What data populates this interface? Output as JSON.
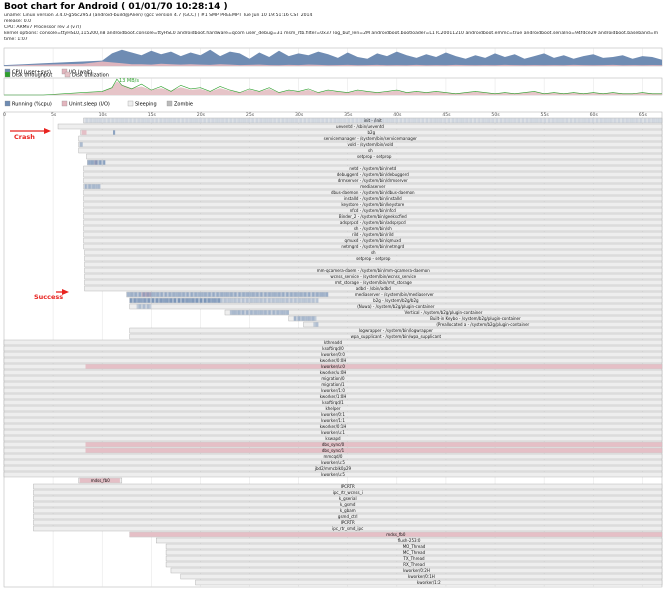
{
  "header": {
    "title": "Boot chart for Android ( 01/01/70 10:28:14 )",
    "lines": [
      "uname: Linux version 3.4.0-g56c2953 (android-build@Alien) (gcc version 4.7 (GCC) ) #1 SMP PREEMPT Tue Jun 10 19:51:16 CST 2014",
      "release: 0.0",
      "CPU: ARMv7 Processor rev 3 (v7l)",
      "kernel options: console=ttyHSL0,115200,n8 androidboot.console=ttyHSL0 androidboot.hardware=qcom user_debug=31 msm_rtb.filter=0x37 log_buf_len=2M androidboot.bootloader=L1TC20011210 androidboot.emmc=true androidboot.serialno=94fdce29 androidboot.baseband=m",
      "time: 1:07"
    ]
  },
  "legend_cpu": [
    {
      "label": "CPU (user+sys)",
      "color": "#6f8cb3"
    },
    {
      "label": "I/O (wait)",
      "color": "#e3b6be"
    }
  ],
  "legend_disk": [
    {
      "label": "Disk throughput",
      "color": "#2ca02c"
    },
    {
      "label": "Disk utilization",
      "color": "#e6c4c8"
    }
  ],
  "legend_proc": [
    {
      "label": "Running (%cpu)",
      "color": "#6f8cb3"
    },
    {
      "label": "Unint.sleep (I/O)",
      "color": "#e3b6be"
    },
    {
      "label": "Sleeping",
      "color": "#eeeeee"
    },
    {
      "label": "Zombie",
      "color": "#bbbbbb"
    }
  ],
  "annotations": {
    "disk_peak": "13 MB/s",
    "crash": "Crash",
    "success": "Success"
  },
  "colors": {
    "cpu": "#6f8cb3",
    "io": "#e3b6be",
    "disk": "#2ca02c",
    "sleeping": "#eeeeee",
    "border": "#aaaaaa",
    "annotation": "#e8231f"
  },
  "chart_data": {
    "type": "gantt",
    "time_axis": {
      "unit": "s",
      "min": 0,
      "max": 67,
      "tick_labels": [
        "0",
        "5s",
        "10s",
        "15s",
        "20s",
        "25s",
        "30s",
        "35s",
        "40s",
        "45s",
        "50s",
        "55s",
        "60s",
        "65s"
      ],
      "tick_values": [
        0,
        5,
        10,
        15,
        20,
        25,
        30,
        35,
        40,
        45,
        50,
        55,
        60,
        65
      ]
    },
    "cpu_series": {
      "x": [
        0,
        2,
        4,
        6,
        8,
        10,
        11,
        12,
        13,
        14,
        15,
        16,
        17,
        18,
        19,
        20,
        21,
        22,
        23,
        24,
        25,
        26,
        27,
        28,
        29,
        30,
        31,
        32,
        33,
        34,
        35,
        36,
        37,
        38,
        39,
        40,
        41,
        42,
        43,
        44,
        45,
        46,
        47,
        48,
        49,
        50,
        51,
        52,
        53,
        54,
        55,
        56,
        57,
        58,
        59,
        60,
        61,
        62,
        63,
        64,
        65,
        66,
        67
      ],
      "cpu": [
        5,
        10,
        15,
        20,
        25,
        30,
        70,
        90,
        75,
        60,
        85,
        65,
        80,
        55,
        75,
        60,
        90,
        55,
        80,
        70,
        40,
        75,
        50,
        85,
        55,
        70,
        60,
        80,
        65,
        45,
        75,
        50,
        40,
        70,
        55,
        80,
        60,
        45,
        65,
        50,
        75,
        55,
        40,
        60,
        45,
        70,
        50,
        65,
        40,
        55,
        70,
        45,
        60,
        40,
        55,
        65,
        45,
        50,
        60,
        40,
        55,
        50,
        35
      ],
      "io": [
        0,
        5,
        8,
        10,
        12,
        25,
        20,
        15,
        10,
        10,
        8,
        12,
        10,
        8,
        10,
        8,
        6,
        10,
        8,
        5,
        6,
        8,
        5,
        4,
        6,
        5,
        8,
        6,
        4,
        5,
        6,
        4,
        5,
        6,
        4,
        5,
        4,
        6,
        4,
        5,
        4,
        6,
        5,
        4,
        5,
        4,
        6,
        5,
        4,
        5,
        4,
        5,
        4,
        6,
        5,
        4,
        5,
        6,
        4,
        5,
        4,
        5,
        4
      ]
    },
    "disk_series": {
      "x": [
        0,
        4,
        6,
        8,
        10,
        11,
        11.5,
        12,
        13,
        14,
        15,
        16,
        17,
        18,
        19,
        20,
        21,
        22,
        23,
        24,
        25,
        26,
        27,
        28,
        29,
        30,
        31,
        32,
        33,
        34,
        35,
        36,
        37,
        38,
        39,
        40,
        41,
        42,
        43,
        44,
        45,
        46,
        47,
        48,
        49,
        50,
        51,
        52,
        53,
        54,
        55,
        56,
        57,
        58,
        59,
        60,
        61,
        62,
        63,
        64,
        65,
        66,
        67
      ],
      "throughput": [
        0,
        0,
        1,
        2,
        3,
        6,
        13,
        8,
        5,
        9,
        4,
        7,
        3,
        8,
        5,
        6,
        3,
        7,
        4,
        2,
        5,
        3,
        6,
        2,
        4,
        3,
        5,
        2,
        4,
        3,
        2,
        4,
        3,
        2,
        3,
        4,
        2,
        3,
        2,
        3,
        2,
        1,
        2,
        3,
        2,
        1,
        2,
        1,
        2,
        3,
        1,
        2,
        1,
        2,
        1,
        2,
        1,
        2,
        1,
        1,
        2,
        1,
        1
      ],
      "utilization": [
        0,
        0,
        5,
        10,
        20,
        45,
        80,
        60,
        40,
        50,
        30,
        40,
        25,
        45,
        30,
        35,
        20,
        40,
        25,
        15,
        30,
        20,
        35,
        15,
        25,
        20,
        30,
        15,
        25,
        20,
        15,
        25,
        20,
        15,
        20,
        25,
        15,
        20,
        15,
        20,
        15,
        10,
        15,
        20,
        15,
        10,
        15,
        10,
        15,
        20,
        10,
        15,
        10,
        15,
        10,
        15,
        10,
        15,
        10,
        10,
        15,
        10,
        10
      ],
      "peak_label": "13 MB/s"
    },
    "processes": [
      {
        "name": "init - /init",
        "start": 8.1,
        "end": 67,
        "run": [
          [
            8.1,
            67,
            0.25
          ]
        ]
      },
      {
        "name": "ueventd - /sbin/ueventd",
        "start": 5.5,
        "end": 67
      },
      {
        "name": "b2g",
        "start": 7.8,
        "end": 67,
        "run": [
          [
            11.1,
            11.3,
            0.8
          ]
        ],
        "io": [
          [
            7.9,
            8.4
          ]
        ]
      },
      {
        "name": "servicemanager - /system/bin/servicemanager",
        "start": 7.6,
        "end": 67
      },
      {
        "name": "vold - /system/bin/vold",
        "start": 7.6,
        "end": 67,
        "run": [
          [
            7.7,
            8,
            0.6
          ]
        ]
      },
      {
        "name": "sh",
        "start": 7.6,
        "end": 67
      },
      {
        "name": "setprop - setprop",
        "start": 8.4,
        "end": 67
      },
      {
        "name": "",
        "start": 8.5,
        "end": 67,
        "run": [
          [
            8.5,
            10.3,
            0.8
          ]
        ],
        "io": [
          [
            9.2,
            9.5
          ]
        ]
      },
      {
        "name": "netd - /system/bin/netd",
        "start": 8.1,
        "end": 67
      },
      {
        "name": "debuggerd - /system/bin/debuggerd",
        "start": 8.1,
        "end": 67
      },
      {
        "name": "drmserver - /system/bin/drmserver",
        "start": 8.1,
        "end": 67
      },
      {
        "name": "mediaserver",
        "start": 8.1,
        "end": 67,
        "run": [
          [
            8.2,
            9.8,
            0.6
          ]
        ]
      },
      {
        "name": "dbus-daemon - /system/bin/dbus-daemon",
        "start": 8.1,
        "end": 67
      },
      {
        "name": "installd - /system/bin/installd",
        "start": 8.1,
        "end": 67
      },
      {
        "name": "keystore - /system/bin/keystore",
        "start": 8.1,
        "end": 67
      },
      {
        "name": "nfcd - /system/bin/nfcd",
        "start": 8.1,
        "end": 67
      },
      {
        "name": "Binder_2 - /system/bin/geekscfied",
        "start": 8.1,
        "end": 67
      },
      {
        "name": "adsprpcd - /system/bin/adsprpcd",
        "start": 8.1,
        "end": 67
      },
      {
        "name": "sh - /system/bin/sh",
        "start": 8.1,
        "end": 67
      },
      {
        "name": "rild - /system/bin/rild",
        "start": 8.1,
        "end": 67
      },
      {
        "name": "qmuxd - /system/bin/qmuxd",
        "start": 8.1,
        "end": 67
      },
      {
        "name": "netmgrd - /system/bin/netmgrd",
        "start": 8.1,
        "end": 67
      },
      {
        "name": "sh",
        "start": 8.2,
        "end": 67
      },
      {
        "name": "setprop - setprop",
        "start": 8.2,
        "end": 67
      },
      {
        "name": "",
        "start": 8.2,
        "end": 67
      },
      {
        "name": "mm-qcamera-daem - /system/bin/mm-qcamera-daemon",
        "start": 8.2,
        "end": 67
      },
      {
        "name": "wcnss_service - /system/bin/wcnss_service",
        "start": 8.2,
        "end": 67
      },
      {
        "name": "rmt_storage - /system/bin/rmt_storage",
        "start": 8.2,
        "end": 67
      },
      {
        "name": "adbd - /sbin/adbd",
        "start": 8.2,
        "end": 67
      },
      {
        "name": "mediaserver - /system/bin/mediaserver",
        "start": 12.5,
        "end": 67,
        "run": [
          [
            12.5,
            33,
            0.7
          ]
        ],
        "io": [
          [
            14,
            15
          ]
        ]
      },
      {
        "name": "b2g - /system/b2g/b2g",
        "start": 12.8,
        "end": 67,
        "run": [
          [
            12.8,
            22,
            0.9
          ],
          [
            22,
            32,
            0.45
          ]
        ]
      },
      {
        "name": "(Nuwa) - /system/b2g/plugin-container",
        "start": 12.8,
        "end": 67,
        "run": [
          [
            13.5,
            15,
            0.5
          ]
        ]
      },
      {
        "name": "Vertical - /system/b2g/plugin-container",
        "start": 22.5,
        "end": 67,
        "run": [
          [
            23,
            29,
            0.6
          ]
        ]
      },
      {
        "name": "Built-in Keybo - /system/b2g/plugin-container",
        "start": 29,
        "end": 67,
        "run": [
          [
            29.5,
            31.8,
            0.6
          ]
        ]
      },
      {
        "name": "(Preallocated a - /system/b2g/plugin-container",
        "start": 30.5,
        "end": 67,
        "run": [
          [
            31.5,
            32,
            0.5
          ]
        ]
      },
      {
        "name": "logwrapper - /system/bin/logwrapper",
        "start": 12.8,
        "end": 67
      },
      {
        "name": "wpa_supplicant - /system/bin/wpa_supplicant",
        "start": 12.8,
        "end": 67
      },
      {
        "name": "kthreadd",
        "start": 0,
        "end": 67
      },
      {
        "name": "ksoftirqd/0",
        "start": 0,
        "end": 67
      },
      {
        "name": "kworker/0:0",
        "start": 0,
        "end": 67
      },
      {
        "name": "kworker/0:0H",
        "start": 0,
        "end": 67
      },
      {
        "name": "kworker/u:0",
        "start": 0,
        "end": 67,
        "io": [
          [
            8.3,
            67
          ]
        ]
      },
      {
        "name": "kworker/u:0H",
        "start": 0,
        "end": 67
      },
      {
        "name": "migration/0",
        "start": 0,
        "end": 67
      },
      {
        "name": "migration/1",
        "start": 0,
        "end": 67
      },
      {
        "name": "kworker/1:0",
        "start": 0,
        "end": 67
      },
      {
        "name": "kworker/1:0H",
        "start": 0,
        "end": 67
      },
      {
        "name": "ksoftirqd/1",
        "start": 0,
        "end": 67
      },
      {
        "name": "khelper",
        "start": 0,
        "end": 67
      },
      {
        "name": "kworker/0:1",
        "start": 0,
        "end": 67
      },
      {
        "name": "kworker/1:1",
        "start": 0,
        "end": 67
      },
      {
        "name": "kworker/0:1H",
        "start": 0,
        "end": 67
      },
      {
        "name": "kworker/u:1",
        "start": 0,
        "end": 67
      },
      {
        "name": "kswapd",
        "start": 0,
        "end": 67
      },
      {
        "name": "dbs_sync/0",
        "start": 0,
        "end": 67,
        "io": [
          [
            8.3,
            67
          ]
        ]
      },
      {
        "name": "dbs_sync/1",
        "start": 0,
        "end": 67,
        "io": [
          [
            8.3,
            67
          ]
        ]
      },
      {
        "name": "mmcqd/0",
        "start": 0,
        "end": 67
      },
      {
        "name": "kworker/u:5",
        "start": 0,
        "end": 67
      },
      {
        "name": "jbd2/mmcblk0p29",
        "start": 0,
        "end": 67
      },
      {
        "name": "kworker/u:5",
        "start": 0,
        "end": 67
      },
      {
        "name": "mdss_fb0",
        "start": 7.6,
        "end": 12,
        "io": [
          [
            7.7,
            11.8
          ]
        ]
      },
      {
        "name": "IPCRTR",
        "start": 3,
        "end": 67
      },
      {
        "name": "ipc_rtr_wcnss_i",
        "start": 3,
        "end": 67
      },
      {
        "name": "k_gserial",
        "start": 3,
        "end": 67
      },
      {
        "name": "k_gsmd",
        "start": 3,
        "end": 67
      },
      {
        "name": "k_gbam",
        "start": 3,
        "end": 67
      },
      {
        "name": "gsmd_ctrl",
        "start": 3,
        "end": 67
      },
      {
        "name": "IPCRTR",
        "start": 3,
        "end": 67
      },
      {
        "name": "ipc_rtr_smd_ipc",
        "start": 3,
        "end": 67
      },
      {
        "name": "mdss_fb0",
        "start": 12.8,
        "end": 67,
        "io": [
          [
            12.8,
            67
          ]
        ]
      },
      {
        "name": "flush-253:0",
        "start": 15.5,
        "end": 67
      },
      {
        "name": "MO_Thread",
        "start": 16.5,
        "end": 67
      },
      {
        "name": "MC_Thread",
        "start": 16.5,
        "end": 67
      },
      {
        "name": "TX_Thread",
        "start": 16.5,
        "end": 67
      },
      {
        "name": "RX_Thread",
        "start": 16.5,
        "end": 67
      },
      {
        "name": "kworker/0:2H",
        "start": 17,
        "end": 67
      },
      {
        "name": "kworker/0:1H",
        "start": 18,
        "end": 67
      },
      {
        "name": "kworker/1:2",
        "start": 19.5,
        "end": 67
      }
    ]
  }
}
